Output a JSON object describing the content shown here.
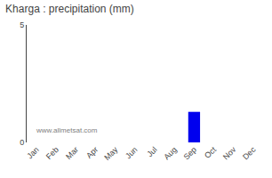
{
  "chart_data": {
    "type": "bar",
    "title": "Kharga : precipitation (mm)",
    "categories": [
      "Jan",
      "Feb",
      "Mar",
      "Apr",
      "May",
      "Jun",
      "Jul",
      "Aug",
      "Sep",
      "Oct",
      "Nov",
      "Dec"
    ],
    "values": [
      0,
      0,
      0,
      0,
      0,
      0,
      0,
      0,
      1.3,
      0,
      0,
      0
    ],
    "color": "#0000ee",
    "ylim": [
      0,
      5
    ],
    "yticks": [
      0,
      5
    ],
    "grid": false,
    "annotations": [
      "www.allmetsat.com"
    ]
  }
}
